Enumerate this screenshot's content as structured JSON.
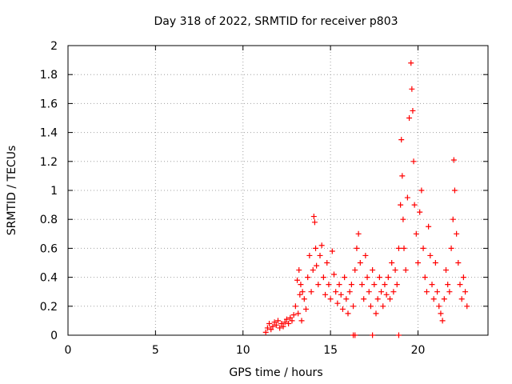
{
  "chart_data": {
    "type": "scatter",
    "title": "Day 318 of 2022, SRMTID for receiver p803",
    "xlabel": "GPS time / hours",
    "ylabel": "SRMTID / TECUs",
    "xlim": [
      0,
      24
    ],
    "ylim": [
      0,
      2
    ],
    "xticks": [
      0,
      5,
      10,
      15,
      20
    ],
    "yticks": [
      0,
      0.2,
      0.4,
      0.6,
      0.8,
      1,
      1.2,
      1.4,
      1.6,
      1.8,
      2
    ],
    "grid": true,
    "legend": "none",
    "marker": "+",
    "series": [
      {
        "name": "SRMTID",
        "color": "#ff0000",
        "x": [
          11.3,
          11.4,
          11.5,
          11.6,
          11.7,
          11.8,
          11.9,
          12.0,
          12.1,
          12.2,
          12.3,
          12.4,
          12.5,
          12.6,
          12.7,
          12.8,
          12.9,
          13.0,
          13.1,
          13.15,
          13.2,
          13.25,
          13.3,
          13.35,
          13.4,
          13.5,
          13.6,
          13.7,
          13.8,
          13.9,
          14.0,
          14.05,
          14.1,
          14.15,
          14.2,
          14.3,
          14.4,
          14.5,
          14.6,
          14.7,
          14.8,
          14.9,
          15.0,
          15.1,
          15.2,
          15.3,
          15.4,
          15.5,
          15.6,
          15.7,
          15.8,
          15.9,
          16.0,
          16.1,
          16.2,
          16.3,
          16.4,
          16.5,
          16.6,
          16.7,
          16.8,
          16.9,
          17.0,
          17.1,
          17.2,
          17.3,
          17.4,
          17.5,
          17.6,
          17.7,
          17.8,
          17.9,
          18.0,
          18.1,
          18.2,
          18.3,
          18.4,
          18.5,
          18.6,
          18.7,
          18.8,
          18.9,
          19.0,
          19.05,
          19.1,
          19.15,
          19.2,
          19.3,
          19.4,
          19.5,
          19.6,
          19.65,
          19.7,
          19.75,
          19.8,
          19.9,
          20.0,
          20.1,
          20.2,
          20.3,
          20.4,
          20.5,
          20.6,
          20.7,
          20.8,
          20.9,
          21.0,
          21.1,
          21.2,
          21.3,
          21.4,
          21.5,
          21.6,
          21.7,
          21.8,
          21.9,
          22.0,
          22.05,
          22.1,
          22.2,
          22.3,
          22.4,
          22.5,
          22.6,
          22.7,
          22.8,
          16.3,
          16.4,
          17.4,
          18.9
        ],
        "values": [
          0.02,
          0.05,
          0.08,
          0.04,
          0.06,
          0.09,
          0.07,
          0.1,
          0.05,
          0.08,
          0.06,
          0.09,
          0.11,
          0.08,
          0.12,
          0.1,
          0.14,
          0.2,
          0.38,
          0.15,
          0.45,
          0.28,
          0.35,
          0.1,
          0.3,
          0.25,
          0.18,
          0.4,
          0.55,
          0.3,
          0.45,
          0.82,
          0.78,
          0.6,
          0.48,
          0.35,
          0.55,
          0.62,
          0.4,
          0.28,
          0.5,
          0.35,
          0.25,
          0.58,
          0.42,
          0.3,
          0.22,
          0.35,
          0.28,
          0.18,
          0.4,
          0.25,
          0.15,
          0.3,
          0.35,
          0.2,
          0.45,
          0.6,
          0.7,
          0.5,
          0.35,
          0.25,
          0.55,
          0.4,
          0.3,
          0.2,
          0.45,
          0.35,
          0.15,
          0.25,
          0.4,
          0.3,
          0.2,
          0.35,
          0.28,
          0.4,
          0.25,
          0.5,
          0.3,
          0.45,
          0.35,
          0.6,
          0.9,
          1.35,
          1.1,
          0.8,
          0.6,
          0.45,
          0.95,
          1.5,
          1.88,
          1.7,
          1.55,
          1.2,
          0.9,
          0.7,
          0.5,
          0.85,
          1.0,
          0.6,
          0.4,
          0.3,
          0.75,
          0.55,
          0.35,
          0.25,
          0.5,
          0.3,
          0.2,
          0.15,
          0.1,
          0.25,
          0.45,
          0.35,
          0.3,
          0.6,
          0.8,
          1.21,
          1.0,
          0.7,
          0.5,
          0.35,
          0.25,
          0.4,
          0.3,
          0.2,
          0.0,
          0.0,
          0.0,
          0.0
        ]
      }
    ]
  }
}
